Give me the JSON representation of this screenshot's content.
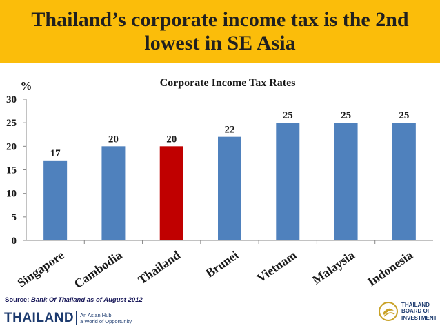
{
  "slide": {
    "title": "Thailand’s corporate income tax is the 2nd lowest in SE Asia",
    "source_label": "Source:",
    "source_text": "Bank Of Thailand  as of August 2012",
    "footer_logo": "THAILAND",
    "footer_tagline_1": "An Asian Hub,",
    "footer_tagline_2": "a World of Opportunity",
    "boi_line_1": "THAILAND",
    "boi_line_2": "BOARD OF",
    "boi_line_3": "INVESTMENT"
  },
  "colors": {
    "banner": "#fbbd0a",
    "bar": "#4f81bd",
    "highlight_bar": "#c00000",
    "navy": "#1d3b6f"
  },
  "chart_data": {
    "type": "bar",
    "title": "Corporate Income Tax Rates",
    "ylabel": "%",
    "xlabel": "",
    "categories": [
      "Singapore",
      "Cambodia",
      "Thailand",
      "Brunei",
      "Vietnam",
      "Malaysia",
      "Indonesia"
    ],
    "values": [
      17,
      20,
      20,
      22,
      25,
      25,
      25
    ],
    "highlight": "Thailand",
    "ylim": [
      0,
      30
    ],
    "yticks": [
      0,
      5,
      10,
      15,
      20,
      25,
      30
    ],
    "grid": false,
    "legend": "none",
    "data_labels": true
  }
}
